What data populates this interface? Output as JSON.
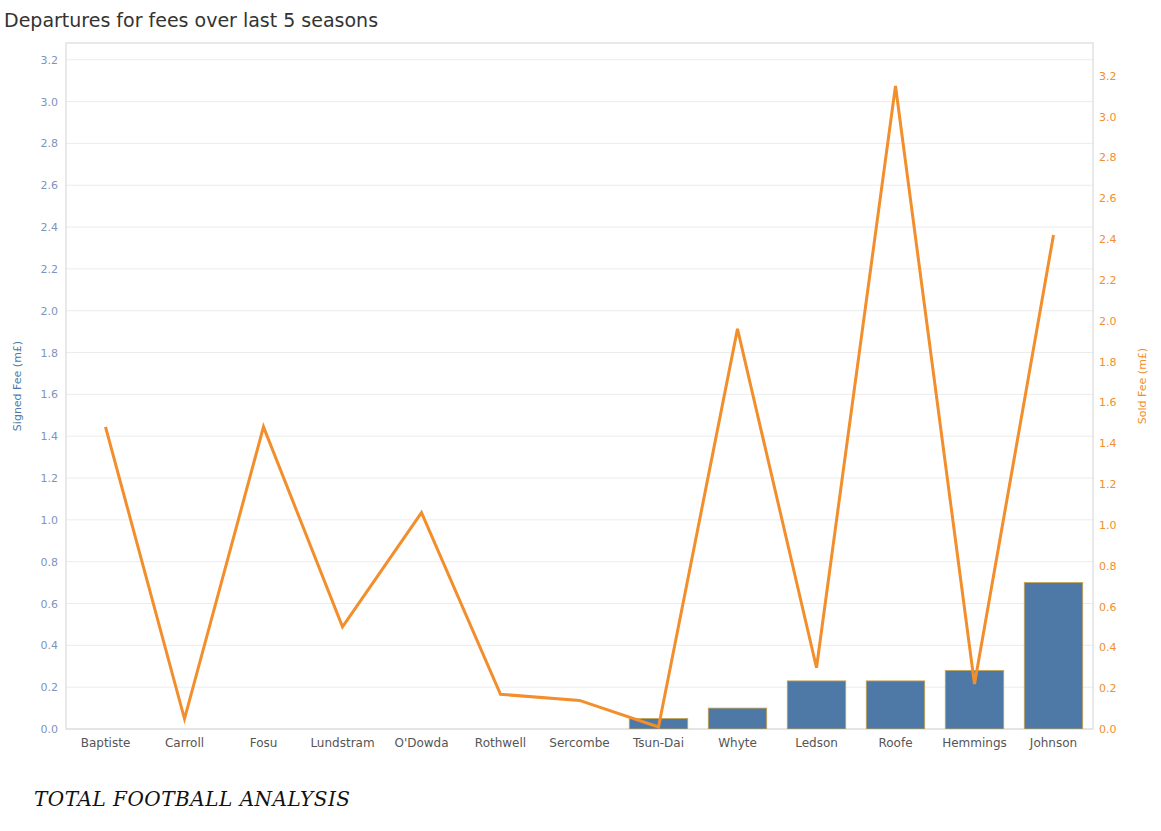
{
  "chart_data": {
    "type": "bar",
    "title": "Departures for fees over last 5 seasons",
    "y_label": "Signed Fee (m£)",
    "y2_label": "Sold Fee (m£)",
    "annotations": [
      "TOTAL FOOTBALL ANALYSIS"
    ],
    "categories": [
      "Baptiste",
      "Carroll",
      "Fosu",
      "Lundstram",
      "O'Dowda",
      "Rothwell",
      "Sercombe",
      "Tsun-Dai",
      "Whyte",
      "Ledson",
      "Roofe",
      "Hemmings",
      "Johnson"
    ],
    "series": [
      {
        "type": "bar",
        "color": "#4e79a7",
        "values": [
          null,
          null,
          null,
          null,
          null,
          null,
          null,
          0.05,
          0.1,
          0.23,
          0.23,
          0.28,
          0.7
        ]
      },
      {
        "type": "line",
        "color": "#f28e2b",
        "axis": "y2",
        "values": [
          1.48,
          0.05,
          1.48,
          0.5,
          1.06,
          0.17,
          0.14,
          0.01,
          1.96,
          0.3,
          3.15,
          0.22,
          2.42
        ]
      }
    ],
    "ylim": [
      0,
      3.28
    ],
    "yticks": [
      {
        "value": 0,
        "label": "0.0"
      },
      0.2,
      0.4,
      0.6,
      0.8,
      {
        "value": 1,
        "label": "1.0"
      },
      1.2,
      1.4,
      1.6,
      1.8,
      {
        "value": 2,
        "label": "2.0"
      },
      2.2,
      2.4,
      2.6,
      2.8,
      {
        "value": 3,
        "label": "3.0"
      },
      3.2
    ],
    "y2lim": [
      0,
      3.36
    ],
    "y2ticks": [
      {
        "value": 0,
        "label": "0.0"
      },
      0.2,
      0.4,
      0.6,
      0.8,
      {
        "value": 1,
        "label": "1.0"
      },
      1.2,
      1.4,
      1.6,
      1.8,
      {
        "value": 2,
        "label": "2.0"
      },
      2.2,
      2.4,
      2.6,
      2.8,
      {
        "value": 3,
        "label": "3.0"
      },
      3.2
    ],
    "grid": true
  }
}
